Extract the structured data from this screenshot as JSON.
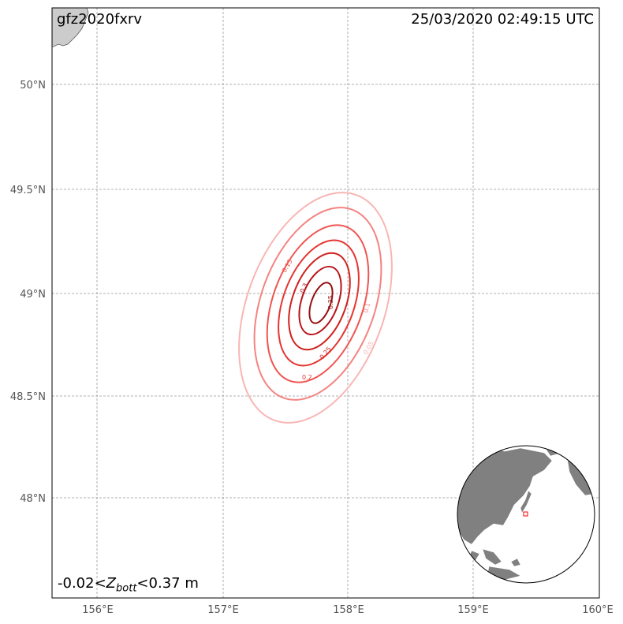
{
  "map": {
    "event_id": "gfz2020fxrv",
    "timestamp": "25/03/2020 02:49:15 UTC",
    "range": {
      "min": "-0.02",
      "variable": "Z",
      "variable_sub": "bott",
      "max": "0.37 m"
    },
    "lat_ticks": [
      "50°N",
      "49.5°N",
      "49°N",
      "48.5°N",
      "48°N"
    ],
    "lon_ticks": [
      "156°E",
      "157°E",
      "158°E",
      "159°E",
      "160°E"
    ],
    "contour_labels": [
      "0.05",
      "0.1",
      "0.15",
      "0.2",
      "0.25",
      "0.3",
      "0.35"
    ],
    "colors": {
      "land": "#cccccc",
      "grid": "#999999",
      "contour_0_05": "#f8b6b4",
      "contour_0_1": "#f48482",
      "contour_0_15": "#ef5552",
      "contour_0_2": "#e53530",
      "contour_0_25": "#d0211d",
      "contour_0_3": "#b8141a",
      "contour_0_35": "#951012",
      "inset_land": "#808080",
      "inset_marker": "#ff0000"
    }
  }
}
